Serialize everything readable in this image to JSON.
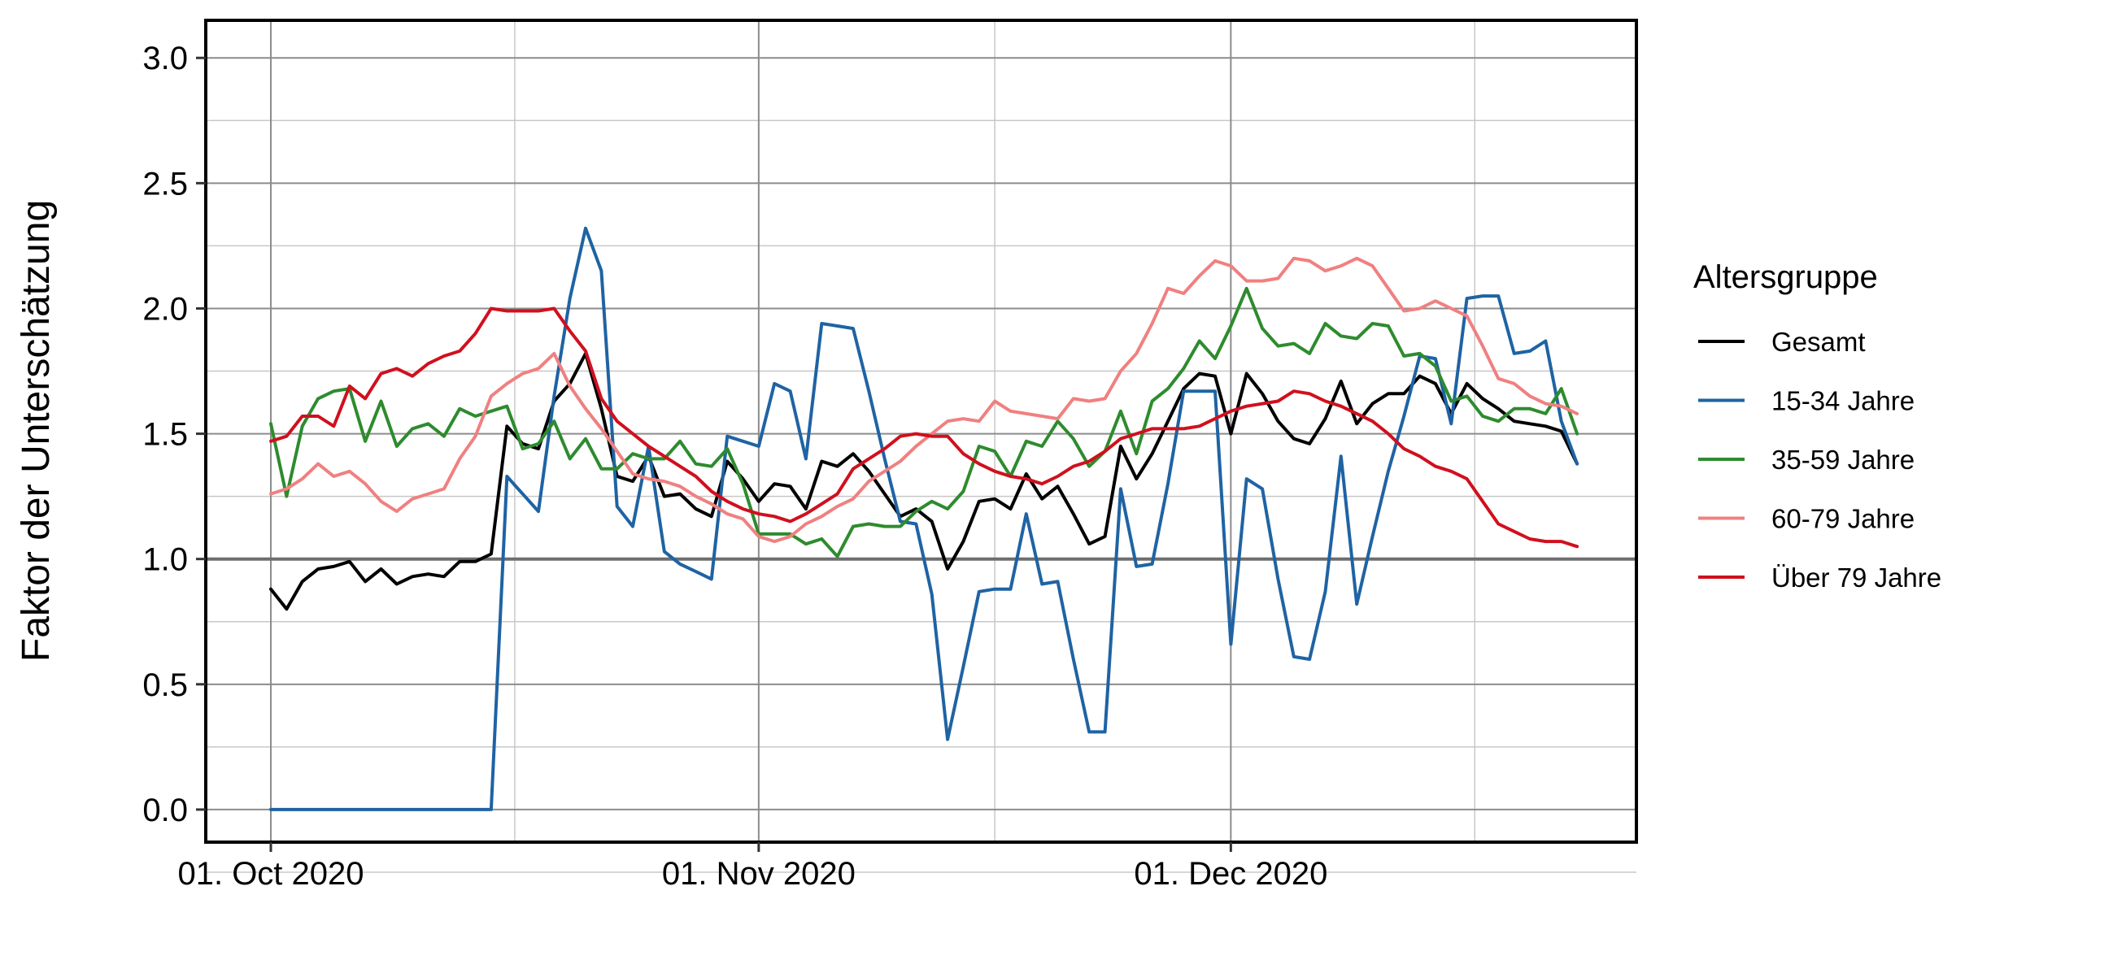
{
  "chart_data": {
    "type": "line",
    "title": "",
    "xlabel": "",
    "ylabel": "Faktor der Unterschätzung",
    "x_start": "2020-10-01",
    "ylim": [
      -0.13,
      3.15
    ],
    "y_ticks": [
      "0.0",
      "0.5",
      "1.0",
      "1.5",
      "2.0",
      "2.5",
      "3.0"
    ],
    "x_ticks": [
      {
        "date": "2020-10-01",
        "label": "01. Oct 2020"
      },
      {
        "date": "2020-11-01",
        "label": "01. Nov 2020"
      },
      {
        "date": "2020-12-01",
        "label": "01. Dec 2020"
      }
    ],
    "reference_line": 1.0,
    "grid": true,
    "legend": {
      "title": "Altersgruppe",
      "position": "right"
    },
    "series": [
      {
        "name": "Gesamt",
        "color": "#000000",
        "values": [
          0.88,
          0.8,
          0.91,
          0.96,
          0.97,
          0.99,
          0.91,
          0.96,
          0.9,
          0.93,
          0.94,
          0.93,
          0.99,
          0.99,
          1.02,
          1.53,
          1.46,
          1.44,
          1.63,
          1.7,
          1.82,
          1.6,
          1.33,
          1.31,
          1.41,
          1.25,
          1.26,
          1.2,
          1.17,
          1.39,
          1.32,
          1.23,
          1.3,
          1.29,
          1.2,
          1.39,
          1.37,
          1.42,
          1.35,
          1.26,
          1.17,
          1.2,
          1.15,
          0.96,
          1.07,
          1.23,
          1.24,
          1.2,
          1.34,
          1.24,
          1.29,
          1.18,
          1.06,
          1.09,
          1.45,
          1.32,
          1.42,
          1.55,
          1.68,
          1.74,
          1.73,
          1.5,
          1.74,
          1.66,
          1.55,
          1.48,
          1.46,
          1.56,
          1.71,
          1.54,
          1.62,
          1.66,
          1.66,
          1.73,
          1.7,
          1.58,
          1.7,
          1.64,
          1.6,
          1.55,
          1.54,
          1.53,
          1.51,
          1.38
        ]
      },
      {
        "name": "15-34 Jahre",
        "color": "#1f63a3",
        "values": [
          0.0,
          0.0,
          0.0,
          0.0,
          0.0,
          0.0,
          0.0,
          0.0,
          0.0,
          0.0,
          0.0,
          0.0,
          0.0,
          0.0,
          0.0,
          1.33,
          1.26,
          1.19,
          1.65,
          2.04,
          2.32,
          2.15,
          1.21,
          1.13,
          1.45,
          1.03,
          0.98,
          0.95,
          0.92,
          1.49,
          1.47,
          1.45,
          1.7,
          1.67,
          1.4,
          1.94,
          1.93,
          1.92,
          1.67,
          1.4,
          1.15,
          1.14,
          0.86,
          0.28,
          0.57,
          0.87,
          0.88,
          0.88,
          1.18,
          0.9,
          0.91,
          0.6,
          0.31,
          0.31,
          1.28,
          0.97,
          0.98,
          1.3,
          1.67,
          1.67,
          1.67,
          0.66,
          1.32,
          1.28,
          0.92,
          0.61,
          0.6,
          0.87,
          1.41,
          0.82,
          1.09,
          1.35,
          1.57,
          1.81,
          1.8,
          1.54,
          2.04,
          2.05,
          2.05,
          1.82,
          1.83,
          1.87,
          1.55,
          1.38
        ]
      },
      {
        "name": "35-59 Jahre",
        "color": "#2e8b2e",
        "values": [
          1.54,
          1.25,
          1.53,
          1.64,
          1.67,
          1.68,
          1.47,
          1.63,
          1.45,
          1.52,
          1.54,
          1.49,
          1.6,
          1.57,
          1.59,
          1.61,
          1.44,
          1.46,
          1.55,
          1.4,
          1.48,
          1.36,
          1.36,
          1.42,
          1.4,
          1.4,
          1.47,
          1.38,
          1.37,
          1.44,
          1.3,
          1.1,
          1.1,
          1.1,
          1.06,
          1.08,
          1.01,
          1.13,
          1.14,
          1.13,
          1.13,
          1.19,
          1.23,
          1.2,
          1.27,
          1.45,
          1.43,
          1.33,
          1.47,
          1.45,
          1.55,
          1.48,
          1.37,
          1.43,
          1.59,
          1.42,
          1.63,
          1.68,
          1.76,
          1.87,
          1.8,
          1.93,
          2.08,
          1.92,
          1.85,
          1.86,
          1.82,
          1.94,
          1.89,
          1.88,
          1.94,
          1.93,
          1.81,
          1.82,
          1.77,
          1.63,
          1.65,
          1.57,
          1.55,
          1.6,
          1.6,
          1.58,
          1.68,
          1.5
        ]
      },
      {
        "name": "60-79 Jahre",
        "color": "#f08080",
        "values": [
          1.26,
          1.28,
          1.32,
          1.38,
          1.33,
          1.35,
          1.3,
          1.23,
          1.19,
          1.24,
          1.26,
          1.28,
          1.4,
          1.49,
          1.65,
          1.7,
          1.74,
          1.76,
          1.82,
          1.69,
          1.6,
          1.52,
          1.43,
          1.34,
          1.32,
          1.31,
          1.29,
          1.25,
          1.22,
          1.18,
          1.16,
          1.09,
          1.07,
          1.09,
          1.14,
          1.17,
          1.21,
          1.24,
          1.31,
          1.35,
          1.39,
          1.45,
          1.5,
          1.55,
          1.56,
          1.55,
          1.63,
          1.59,
          1.58,
          1.57,
          1.56,
          1.64,
          1.63,
          1.64,
          1.75,
          1.82,
          1.94,
          2.08,
          2.06,
          2.13,
          2.19,
          2.17,
          2.11,
          2.11,
          2.12,
          2.2,
          2.19,
          2.15,
          2.17,
          2.2,
          2.17,
          2.08,
          1.99,
          2.0,
          2.03,
          2.0,
          1.97,
          1.85,
          1.72,
          1.7,
          1.65,
          1.62,
          1.61,
          1.58
        ]
      },
      {
        "name": "Über 79 Jahre",
        "color": "#d0101e",
        "values": [
          1.47,
          1.49,
          1.57,
          1.57,
          1.53,
          1.69,
          1.64,
          1.74,
          1.76,
          1.73,
          1.78,
          1.81,
          1.83,
          1.9,
          2.0,
          1.99,
          1.99,
          1.99,
          2.0,
          1.91,
          1.83,
          1.64,
          1.55,
          1.5,
          1.45,
          1.41,
          1.37,
          1.33,
          1.27,
          1.23,
          1.2,
          1.18,
          1.17,
          1.15,
          1.18,
          1.22,
          1.26,
          1.36,
          1.4,
          1.44,
          1.49,
          1.5,
          1.49,
          1.49,
          1.42,
          1.38,
          1.35,
          1.33,
          1.32,
          1.3,
          1.33,
          1.37,
          1.39,
          1.43,
          1.48,
          1.5,
          1.52,
          1.52,
          1.52,
          1.53,
          1.56,
          1.59,
          1.61,
          1.62,
          1.63,
          1.67,
          1.66,
          1.63,
          1.61,
          1.58,
          1.55,
          1.5,
          1.44,
          1.41,
          1.37,
          1.35,
          1.32,
          1.23,
          1.14,
          1.11,
          1.08,
          1.07,
          1.07,
          1.05
        ]
      }
    ]
  }
}
